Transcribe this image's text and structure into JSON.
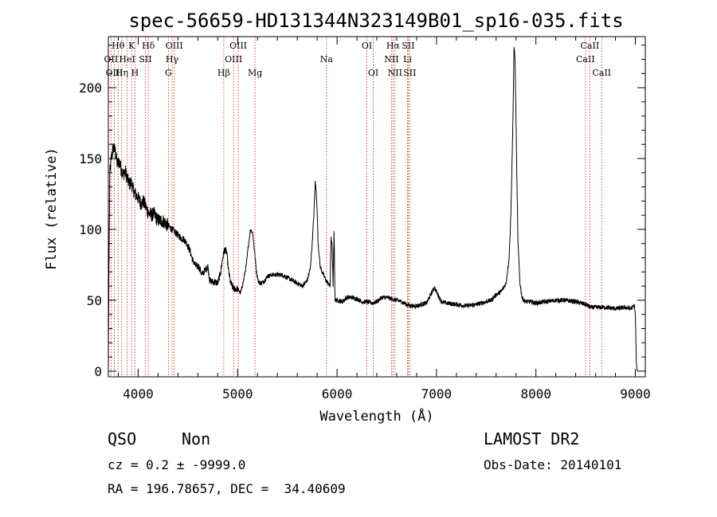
{
  "chart_data": {
    "type": "line",
    "title": "spec-56659-HD131344N323149B01_sp16-035.fits",
    "xlabel": "Wavelength (Å)",
    "ylabel": "Flux (relative)",
    "xlim": [
      3700,
      9100
    ],
    "ylim": [
      -4,
      236
    ],
    "xticks": [
      4000,
      5000,
      6000,
      7000,
      8000,
      9000
    ],
    "yticks": [
      0,
      50,
      100,
      150,
      200
    ],
    "spectrum": {
      "x": [
        3700,
        3705,
        3715,
        3730,
        3750,
        3770,
        3790,
        3810,
        3830,
        3850,
        3870,
        3890,
        3910,
        3930,
        3950,
        3970,
        3990,
        4010,
        4030,
        4050,
        4070,
        4100,
        4130,
        4160,
        4190,
        4220,
        4250,
        4280,
        4310,
        4340,
        4370,
        4400,
        4430,
        4460,
        4490,
        4520,
        4550,
        4580,
        4610,
        4640,
        4670,
        4700,
        4720,
        4740,
        4770,
        4800,
        4830,
        4850,
        4870,
        4890,
        4910,
        4930,
        4960,
        5000,
        5030,
        5060,
        5090,
        5110,
        5130,
        5150,
        5170,
        5190,
        5210,
        5230,
        5260,
        5300,
        5350,
        5400,
        5450,
        5500,
        5550,
        5600,
        5650,
        5700,
        5730,
        5750,
        5770,
        5780,
        5790,
        5800,
        5810,
        5830,
        5850,
        5870,
        5890,
        5910,
        5930,
        5940,
        5950,
        5960,
        5970,
        5980,
        6000,
        6050,
        6100,
        6150,
        6200,
        6250,
        6300,
        6350,
        6400,
        6450,
        6500,
        6550,
        6600,
        6650,
        6700,
        6750,
        6800,
        6850,
        6900,
        6950,
        6980,
        7000,
        7050,
        7100,
        7200,
        7300,
        7400,
        7500,
        7550,
        7600,
        7650,
        7700,
        7730,
        7750,
        7770,
        7780,
        7790,
        7800,
        7810,
        7820,
        7840,
        7860,
        7880,
        7900,
        7950,
        8000,
        8100,
        8200,
        8300,
        8400,
        8500,
        8550,
        8600,
        8700,
        8800,
        8900,
        8950,
        8990,
        9000,
        9010,
        9020
      ],
      "y": [
        0,
        62,
        140,
        150,
        158,
        155,
        146,
        148,
        142,
        139,
        141,
        136,
        132,
        133,
        128,
        125,
        123,
        121,
        118,
        120,
        117,
        112,
        110,
        111,
        107,
        106,
        106,
        104,
        102,
        100,
        98,
        96,
        94,
        93,
        90,
        85,
        78,
        74,
        74,
        68,
        71,
        74,
        64,
        63,
        63,
        62,
        70,
        80,
        86,
        84,
        70,
        62,
        58,
        58,
        55,
        64,
        76,
        90,
        100,
        98,
        85,
        70,
        63,
        62,
        63,
        67,
        68,
        68,
        68,
        66,
        64,
        62,
        60,
        64,
        72,
        90,
        115,
        133,
        128,
        112,
        90,
        74,
        70,
        67,
        64,
        62,
        60,
        95,
        88,
        60,
        100,
        50,
        50,
        49,
        52,
        52,
        51,
        49,
        49,
        48,
        49,
        52,
        52,
        51,
        50,
        49,
        47,
        46,
        46,
        47,
        48,
        55,
        59,
        56,
        49,
        48,
        47,
        46,
        47,
        49,
        50,
        54,
        56,
        62,
        80,
        115,
        180,
        230,
        220,
        178,
        130,
        90,
        62,
        52,
        50,
        49,
        49,
        48,
        49,
        50,
        50,
        49,
        47,
        45,
        45,
        45,
        44,
        45,
        44,
        46,
        40,
        5,
        0
      ]
    },
    "emission_lines": [
      {
        "name": "Hθ",
        "wavelength": 3798,
        "row": 1
      },
      {
        "name": "OII",
        "wavelength": 3727,
        "row": 2
      },
      {
        "name": "OIII",
        "wavelength": 3760,
        "row": 3
      },
      {
        "name": "Hη",
        "wavelength": 3835,
        "row": 3
      },
      {
        "name": "HeI",
        "wavelength": 3889,
        "row": 2
      },
      {
        "name": "K",
        "wavelength": 3934,
        "row": 1
      },
      {
        "name": "H",
        "wavelength": 3968,
        "row": 3
      },
      {
        "name": "SII",
        "wavelength": 4072,
        "row": 2
      },
      {
        "name": "Hδ",
        "wavelength": 4102,
        "row": 1
      },
      {
        "name": "G",
        "wavelength": 4304,
        "row": 3
      },
      {
        "name": "Hγ",
        "wavelength": 4341,
        "row": 2
      },
      {
        "name": "OIII",
        "wavelength": 4363,
        "row": 1
      },
      {
        "name": "Hβ",
        "wavelength": 4861,
        "row": 3
      },
      {
        "name": "OIII",
        "wavelength": 4959,
        "row": 2
      },
      {
        "name": "OIII",
        "wavelength": 5007,
        "row": 1
      },
      {
        "name": "Mg",
        "wavelength": 5175,
        "row": 3
      },
      {
        "name": "Na",
        "wavelength": 5894,
        "row": 2
      },
      {
        "name": "OI",
        "wavelength": 6300,
        "row": 1
      },
      {
        "name": "OI",
        "wavelength": 6364,
        "row": 3
      },
      {
        "name": "NII",
        "wavelength": 6548,
        "row": 2
      },
      {
        "name": "Hα",
        "wavelength": 6563,
        "row": 1
      },
      {
        "name": "NII",
        "wavelength": 6583,
        "row": 3
      },
      {
        "name": "Li",
        "wavelength": 6708,
        "row": 2
      },
      {
        "name": "SII",
        "wavelength": 6716,
        "row": 1
      },
      {
        "name": "SII",
        "wavelength": 6731,
        "row": 3
      },
      {
        "name": "CaII",
        "wavelength": 8498,
        "row": 2
      },
      {
        "name": "CaII",
        "wavelength": 8542,
        "row": 1
      },
      {
        "name": "CaII",
        "wavelength": 8662,
        "row": 3
      }
    ]
  },
  "info": {
    "class": "QSO",
    "subclass": "Non",
    "survey": "LAMOST DR2",
    "cz": "cz = 0.2 ± -9999.0",
    "obs_date": "Obs-Date: 20140101",
    "coords": "RA = 196.78657, DEC =  34.40609"
  },
  "colors": {
    "line_marker": "#b22222",
    "spectrum": "#000000",
    "axes": "#000000"
  }
}
